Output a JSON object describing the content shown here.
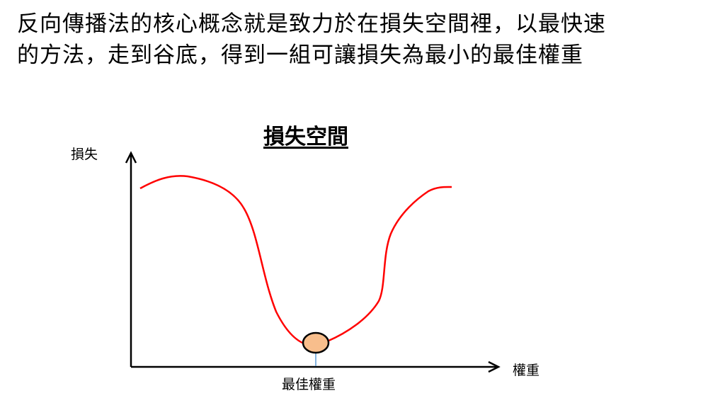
{
  "heading": {
    "line1": "反向傳播法的核心概念就是致力於在損失空間裡，以最快速",
    "line2": "的方法，走到谷底，得到一組可讓損失為最小的最佳權重"
  },
  "diagram": {
    "title": "損失空間",
    "y_axis_label": "損失",
    "x_axis_label": "權重",
    "minimum_label": "最佳權重",
    "colors": {
      "curve": "#ff0000",
      "point_fill": "#f8be8c",
      "marker_line": "#5b9bd5",
      "axis": "#000000"
    }
  }
}
